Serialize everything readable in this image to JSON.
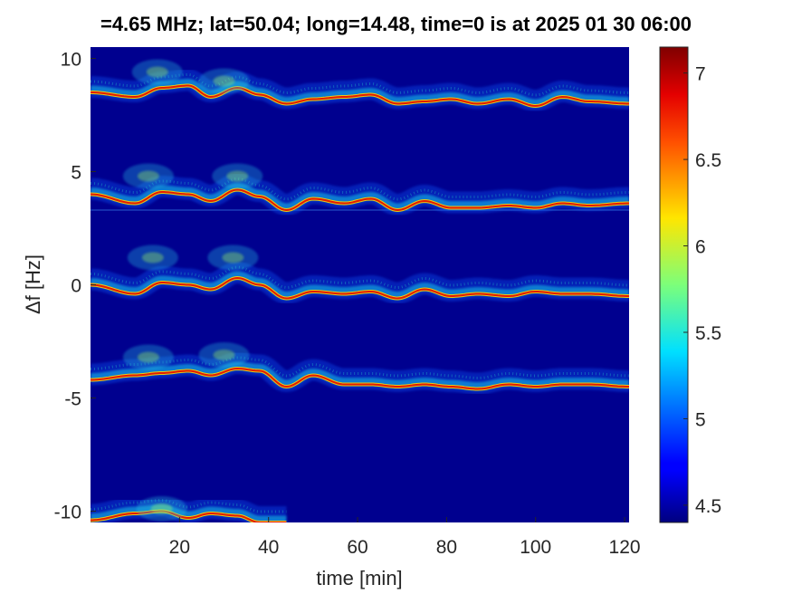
{
  "chart_data": {
    "type": "heatmap",
    "title": "=4.65 MHz;  lat=50.04; long=14.48, time=0 is at 2025 01 30 06:00",
    "xlabel": "time [min]",
    "ylabel": "Δf [Hz]",
    "xlim": [
      0,
      121
    ],
    "ylim": [
      -10.5,
      10.5
    ],
    "xticks": [
      20,
      40,
      60,
      80,
      100,
      120
    ],
    "yticks": [
      -10,
      -5,
      0,
      5,
      10
    ],
    "colorbar": {
      "range": [
        4.4,
        7.15
      ],
      "ticks": [
        4.5,
        5,
        5.5,
        6,
        6.5,
        7
      ],
      "colormap": "jet"
    },
    "background_color": "#00008f",
    "series": [
      {
        "time": [
          0,
          10,
          16,
          22,
          27,
          33,
          38,
          44,
          50,
          57,
          63,
          69,
          75,
          81,
          87,
          94,
          100,
          106,
          112,
          121
        ],
        "freq": [
          8.5,
          8.3,
          8.7,
          8.8,
          8.3,
          8.7,
          8.4,
          8.0,
          8.2,
          8.3,
          8.4,
          8.0,
          8.1,
          8.2,
          8.0,
          8.2,
          7.9,
          8.3,
          8.1,
          8.0
        ]
      },
      {
        "time": [
          0,
          10,
          16,
          22,
          27,
          33,
          38,
          44,
          50,
          57,
          63,
          69,
          75,
          81,
          87,
          94,
          100,
          106,
          112,
          121
        ],
        "freq": [
          4.0,
          3.6,
          4.1,
          4.0,
          3.7,
          4.2,
          3.9,
          3.3,
          3.8,
          3.6,
          3.8,
          3.3,
          3.7,
          3.4,
          3.4,
          3.5,
          3.4,
          3.6,
          3.5,
          3.6
        ]
      },
      {
        "time": [
          0,
          10,
          16,
          22,
          27,
          33,
          38,
          44,
          50,
          57,
          63,
          69,
          75,
          81,
          87,
          94,
          100,
          106,
          112,
          121
        ],
        "freq": [
          0.0,
          -0.4,
          0.1,
          0.0,
          -0.2,
          0.3,
          0.0,
          -0.6,
          -0.3,
          -0.4,
          -0.3,
          -0.6,
          -0.2,
          -0.5,
          -0.4,
          -0.5,
          -0.3,
          -0.4,
          -0.4,
          -0.5
        ]
      },
      {
        "time": [
          0,
          10,
          16,
          22,
          27,
          33,
          38,
          44,
          50,
          57,
          63,
          69,
          75,
          81,
          87,
          94,
          100,
          106,
          112,
          121
        ],
        "freq": [
          -4.2,
          -4.0,
          -3.9,
          -3.8,
          -4.0,
          -3.7,
          -3.8,
          -4.5,
          -4.0,
          -4.4,
          -4.4,
          -4.5,
          -4.4,
          -4.5,
          -4.6,
          -4.4,
          -4.5,
          -4.4,
          -4.4,
          -4.5
        ]
      },
      {
        "time": [
          0,
          10,
          16,
          22,
          27,
          33,
          38,
          44
        ],
        "freq": [
          -10.4,
          -10.1,
          -10.0,
          -10.3,
          -10.1,
          -10.2,
          -10.5,
          -10.5
        ]
      }
    ]
  }
}
